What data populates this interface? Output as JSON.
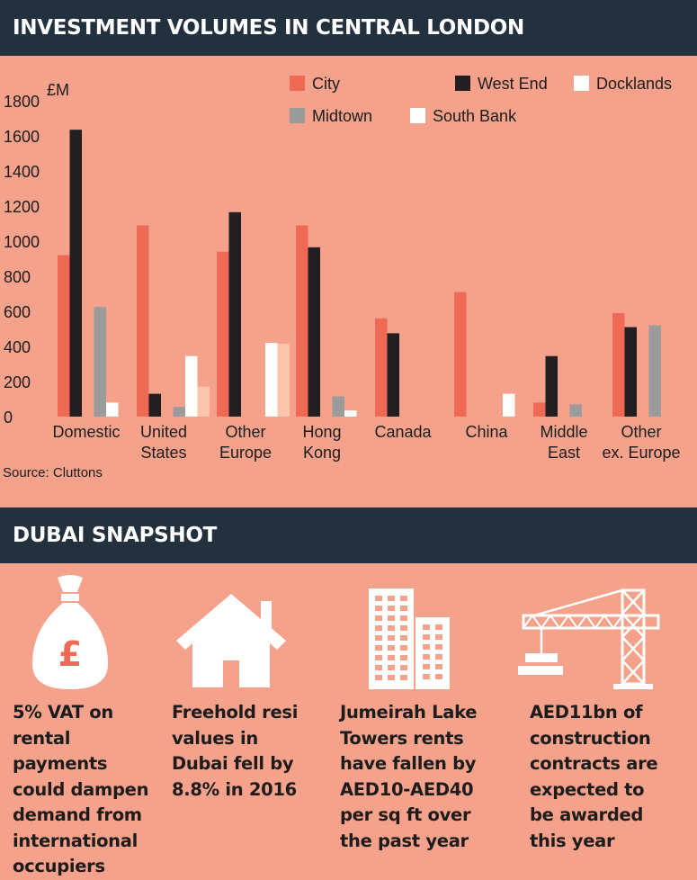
{
  "header": {
    "title": "INVESTMENT VOLUMES IN CENTRAL LONDON"
  },
  "chart_data": {
    "type": "bar",
    "unit_label": "£M",
    "categories": [
      [
        "Domestic"
      ],
      [
        "United",
        "States"
      ],
      [
        "Other",
        "Europe"
      ],
      [
        "Hong",
        "Kong"
      ],
      [
        "Canada"
      ],
      [
        "China"
      ],
      [
        "Middle",
        "East"
      ],
      [
        "Other",
        "ex. Europe"
      ]
    ],
    "ylim": [
      0,
      1800
    ],
    "yticks": [
      0,
      200,
      400,
      600,
      800,
      1000,
      1200,
      1400,
      1600,
      1800
    ],
    "grid": false,
    "legend_position": "top-right",
    "series": [
      {
        "name": "City",
        "color": "#ef6a55",
        "values": [
          920,
          1090,
          940,
          1090,
          560,
          710,
          80,
          590
        ]
      },
      {
        "name": "West End",
        "color": "#231f20",
        "values": [
          1635,
          130,
          1165,
          965,
          475,
          0,
          345,
          510
        ]
      },
      {
        "name": "Docklands",
        "color": "#ffffff",
        "values": [
          0,
          0,
          0,
          0,
          0,
          0,
          0,
          0
        ]
      },
      {
        "name": "Midtown",
        "color": "#9b9b9b",
        "values": [
          625,
          55,
          0,
          115,
          0,
          0,
          70,
          520
        ]
      },
      {
        "name": "South Bank",
        "color": "#ffffff",
        "values": [
          80,
          345,
          420,
          35,
          0,
          130,
          0,
          0
        ]
      },
      {
        "name": "",
        "color": "#fcc4aa",
        "values": [
          0,
          170,
          415,
          0,
          0,
          0,
          0,
          0
        ]
      }
    ]
  },
  "source": "Source: Cluttons",
  "snapshot": {
    "title": "DUBAI SNAPSHOT",
    "items": [
      {
        "icon": "money-bag-icon",
        "lines": [
          "5% VAT on",
          "rental payments",
          "could dampen",
          "demand from",
          "international",
          "occupiers"
        ]
      },
      {
        "icon": "house-icon",
        "lines": [
          "Freehold resi",
          "values in",
          "Dubai fell by",
          "8.8% in 2016"
        ]
      },
      {
        "icon": "skyscraper-icon",
        "lines": [
          "Jumeirah Lake",
          "Towers rents",
          "have fallen by",
          "AED10-AED40",
          "per sq ft over",
          "the past year"
        ]
      },
      {
        "icon": "crane-icon",
        "lines": [
          "AED11bn of",
          "construction",
          "contracts are",
          "expected to",
          "be awarded",
          "this year"
        ]
      }
    ]
  }
}
